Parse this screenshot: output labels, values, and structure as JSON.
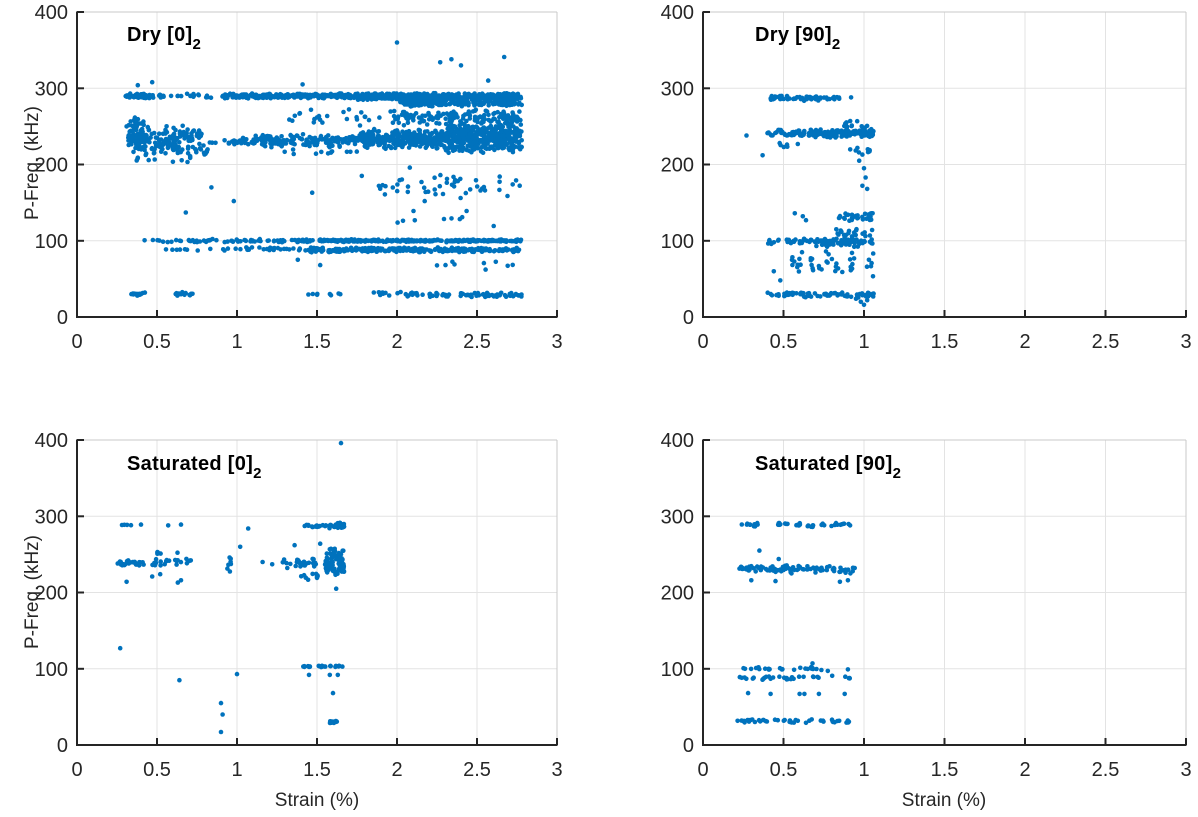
{
  "figure": {
    "background": "#ffffff",
    "marker_color": "#0072BD",
    "grid_color": "#e3e3e3",
    "box_light_color": "#c9c9c9",
    "axis_color": "#252525",
    "tick_label_color": "#262626",
    "title_color": "#000000"
  },
  "band_format": [
    "x_min",
    "x_max",
    "y_center_kHz",
    "y_half_spread_kHz",
    "point_count"
  ],
  "chart_data": [
    {
      "id": "dry-0",
      "type": "scatter",
      "title": "Dry [0]",
      "title_subscript": "2",
      "xlabel": "",
      "ylabel": "P-Freq. (kHz)",
      "xlim": [
        0,
        3
      ],
      "ylim": [
        0,
        400
      ],
      "x_tick_values": [
        0,
        0.5,
        1,
        1.5,
        2,
        2.5,
        3
      ],
      "x_tick_labels": [
        "0",
        "0.5",
        "1",
        "1.5",
        "2",
        "2.5",
        "3"
      ],
      "y_tick_values": [
        0,
        100,
        200,
        300,
        400
      ],
      "y_tick_labels": [
        "0",
        "100",
        "200",
        "300",
        "400"
      ],
      "grid": true,
      "bands": [
        [
          0.3,
          0.48,
          290,
          4,
          55
        ],
        [
          0.48,
          0.92,
          290,
          3,
          24
        ],
        [
          0.92,
          1.75,
          290,
          3.5,
          260
        ],
        [
          1.75,
          2.78,
          289,
          5,
          520
        ],
        [
          2.02,
          2.78,
          281,
          6,
          190
        ],
        [
          0.32,
          0.45,
          237,
          27,
          95
        ],
        [
          0.45,
          0.62,
          228,
          16,
          60
        ],
        [
          0.55,
          0.78,
          238,
          13,
          55
        ],
        [
          0.62,
          0.82,
          218,
          8,
          25
        ],
        [
          0.82,
          1.1,
          230,
          6,
          30
        ],
        [
          1.1,
          1.75,
          231,
          9,
          170
        ],
        [
          1.25,
          1.75,
          216,
          4,
          12
        ],
        [
          1.75,
          2.3,
          233,
          14,
          280
        ],
        [
          2.3,
          2.78,
          236,
          23,
          400
        ],
        [
          1.95,
          2.78,
          262,
          12,
          140
        ],
        [
          1.3,
          1.95,
          264,
          14,
          24
        ],
        [
          0.28,
          0.8,
          206,
          5,
          10
        ],
        [
          0.42,
          1.0,
          100,
          2.5,
          32
        ],
        [
          1.0,
          1.5,
          100,
          2.5,
          45
        ],
        [
          1.5,
          2.78,
          100,
          2,
          270
        ],
        [
          0.55,
          1.0,
          89,
          2.5,
          12
        ],
        [
          1.0,
          1.45,
          89,
          3,
          26
        ],
        [
          1.45,
          2.78,
          88,
          3.5,
          300
        ],
        [
          1.85,
          2.78,
          170,
          22,
          48
        ],
        [
          2.0,
          2.7,
          130,
          12,
          10
        ],
        [
          2.2,
          2.77,
          68,
          7,
          9
        ],
        [
          0.34,
          0.44,
          30,
          3,
          14
        ],
        [
          0.6,
          0.73,
          30,
          3,
          14
        ],
        [
          1.44,
          1.67,
          30,
          2,
          8
        ],
        [
          1.82,
          2.05,
          30,
          3,
          10
        ],
        [
          2.05,
          2.78,
          29,
          3,
          75
        ]
      ],
      "points": [
        [
          0.31,
          250
        ],
        [
          0.38,
          304
        ],
        [
          0.47,
          308
        ],
        [
          1.41,
          305
        ],
        [
          2.57,
          310
        ],
        [
          2.0,
          360
        ],
        [
          2.27,
          334
        ],
        [
          2.34,
          338
        ],
        [
          2.4,
          330
        ],
        [
          2.67,
          341
        ],
        [
          0.68,
          137
        ],
        [
          0.84,
          170
        ],
        [
          0.98,
          152
        ],
        [
          1.47,
          163
        ],
        [
          1.78,
          185
        ],
        [
          1.38,
          75
        ],
        [
          1.52,
          68
        ],
        [
          2.08,
          196
        ]
      ]
    },
    {
      "id": "dry-90",
      "type": "scatter",
      "title": "Dry [90]",
      "title_subscript": "2",
      "xlabel": "",
      "ylabel": "",
      "xlim": [
        0,
        3
      ],
      "ylim": [
        0,
        400
      ],
      "x_tick_values": [
        0,
        0.5,
        1,
        1.5,
        2,
        2.5,
        3
      ],
      "x_tick_labels": [
        "0",
        "0.5",
        "1",
        "1.5",
        "2",
        "2.5",
        "3"
      ],
      "y_tick_values": [
        0,
        100,
        200,
        300,
        400
      ],
      "y_tick_labels": [
        "0",
        "100",
        "200",
        "300",
        "400"
      ],
      "grid": true,
      "bands": [
        [
          0.42,
          0.55,
          288,
          4,
          24
        ],
        [
          0.56,
          0.73,
          287,
          4,
          28
        ],
        [
          0.75,
          0.86,
          288,
          3,
          12
        ],
        [
          0.4,
          0.65,
          241,
          5,
          40
        ],
        [
          0.65,
          1.06,
          241,
          6,
          130
        ],
        [
          0.85,
          1.02,
          253,
          7,
          14
        ],
        [
          0.42,
          0.6,
          224,
          5,
          6
        ],
        [
          0.88,
          1.04,
          218,
          5,
          8
        ],
        [
          0.84,
          1.06,
          131,
          7,
          32
        ],
        [
          0.4,
          0.7,
          99,
          4,
          32
        ],
        [
          0.7,
          1.06,
          98,
          6,
          70
        ],
        [
          0.82,
          1.06,
          110,
          7,
          20
        ],
        [
          0.55,
          1.06,
          70,
          18,
          42
        ],
        [
          0.4,
          0.6,
          30,
          3,
          20
        ],
        [
          0.6,
          1.06,
          29,
          4,
          60
        ]
      ],
      "points": [
        [
          0.92,
          288
        ],
        [
          0.27,
          238
        ],
        [
          0.37,
          212
        ],
        [
          0.99,
          213
        ],
        [
          0.97,
          205
        ],
        [
          1.0,
          195
        ],
        [
          1.01,
          183
        ],
        [
          0.99,
          172
        ],
        [
          1.02,
          168
        ],
        [
          0.57,
          136
        ],
        [
          0.62,
          132
        ],
        [
          0.64,
          127
        ],
        [
          0.98,
          20
        ],
        [
          1.0,
          16
        ],
        [
          1.02,
          22
        ],
        [
          0.95,
          24
        ],
        [
          0.44,
          60
        ],
        [
          0.48,
          48
        ]
      ]
    },
    {
      "id": "saturated-0",
      "type": "scatter",
      "title": "Saturated [0]",
      "title_subscript": "2",
      "xlabel": "Strain (%)",
      "ylabel": "P-Freq. (kHz)",
      "xlim": [
        0,
        3
      ],
      "ylim": [
        0,
        400
      ],
      "x_tick_values": [
        0,
        0.5,
        1,
        1.5,
        2,
        2.5,
        3
      ],
      "x_tick_labels": [
        "0",
        "0.5",
        "1",
        "1.5",
        "2",
        "2.5",
        "3"
      ],
      "y_tick_values": [
        0,
        100,
        200,
        300,
        400
      ],
      "y_tick_labels": [
        "0",
        "100",
        "200",
        "300",
        "400"
      ],
      "grid": true,
      "bands": [
        [
          0.28,
          0.34,
          288,
          2,
          4
        ],
        [
          1.41,
          1.57,
          287,
          2,
          16
        ],
        [
          1.57,
          1.67,
          288,
          4,
          34
        ],
        [
          0.25,
          0.45,
          238,
          6,
          26
        ],
        [
          0.45,
          0.72,
          239,
          7,
          22
        ],
        [
          0.5,
          0.63,
          252,
          2,
          5
        ],
        [
          0.93,
          0.97,
          240,
          14,
          7
        ],
        [
          1.28,
          1.56,
          237,
          8,
          32
        ],
        [
          1.55,
          1.67,
          240,
          19,
          75
        ],
        [
          1.4,
          1.52,
          222,
          6,
          10
        ],
        [
          1.4,
          1.47,
          103,
          1.2,
          8
        ],
        [
          1.5,
          1.56,
          103,
          1.2,
          8
        ],
        [
          1.58,
          1.66,
          103,
          1.2,
          10
        ],
        [
          1.58,
          1.66,
          30,
          2,
          10
        ]
      ],
      "points": [
        [
          0.4,
          289
        ],
        [
          0.57,
          288
        ],
        [
          0.65,
          289
        ],
        [
          0.31,
          214
        ],
        [
          0.63,
          213
        ],
        [
          0.65,
          216
        ],
        [
          0.47,
          221
        ],
        [
          0.52,
          224
        ],
        [
          1.02,
          260
        ],
        [
          1.07,
          284
        ],
        [
          1.16,
          240
        ],
        [
          1.22,
          237
        ],
        [
          1.36,
          262
        ],
        [
          1.52,
          264
        ],
        [
          1.62,
          205
        ],
        [
          0.27,
          127
        ],
        [
          0.64,
          85
        ],
        [
          1.0,
          93
        ],
        [
          0.9,
          55
        ],
        [
          0.91,
          40
        ],
        [
          0.9,
          17
        ],
        [
          1.6,
          68
        ],
        [
          1.45,
          92
        ],
        [
          1.58,
          92
        ],
        [
          1.63,
          92
        ],
        [
          1.65,
          396
        ]
      ]
    },
    {
      "id": "saturated-90",
      "type": "scatter",
      "title": "Saturated [90]",
      "title_subscript": "2",
      "xlabel": "Strain (%)",
      "ylabel": "",
      "xlim": [
        0,
        3
      ],
      "ylim": [
        0,
        400
      ],
      "x_tick_values": [
        0,
        0.5,
        1,
        1.5,
        2,
        2.5,
        3
      ],
      "x_tick_labels": [
        "0",
        "0.5",
        "1",
        "1.5",
        "2",
        "2.5",
        "3"
      ],
      "y_tick_values": [
        0,
        100,
        200,
        300,
        400
      ],
      "y_tick_labels": [
        "0",
        "100",
        "200",
        "300",
        "400"
      ],
      "grid": true,
      "bands": [
        [
          0.24,
          0.34,
          289,
          3,
          10
        ],
        [
          0.45,
          0.53,
          290,
          2,
          10
        ],
        [
          0.57,
          0.7,
          288,
          3,
          12
        ],
        [
          0.72,
          0.95,
          289,
          3,
          14
        ],
        [
          0.2,
          0.5,
          231,
          5,
          42
        ],
        [
          0.5,
          0.95,
          230,
          6,
          48
        ],
        [
          0.25,
          0.5,
          100,
          2,
          13
        ],
        [
          0.55,
          0.92,
          100,
          3,
          13
        ],
        [
          0.22,
          0.55,
          88,
          3,
          20
        ],
        [
          0.55,
          0.92,
          89,
          3,
          13
        ],
        [
          0.2,
          0.55,
          32,
          2.5,
          24
        ],
        [
          0.55,
          0.92,
          31,
          3,
          20
        ]
      ],
      "points": [
        [
          0.35,
          255
        ],
        [
          0.47,
          244
        ],
        [
          0.3,
          216
        ],
        [
          0.45,
          215
        ],
        [
          0.85,
          214
        ],
        [
          0.9,
          216
        ],
        [
          0.68,
          107
        ],
        [
          0.28,
          68
        ],
        [
          0.42,
          67
        ],
        [
          0.6,
          67
        ],
        [
          0.63,
          67
        ],
        [
          0.72,
          67
        ],
        [
          0.88,
          67
        ]
      ]
    }
  ]
}
